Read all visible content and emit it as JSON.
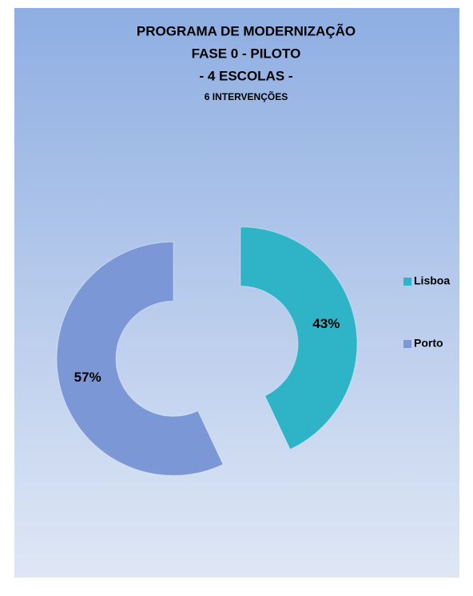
{
  "chart_data": {
    "type": "donut",
    "title": "PROGRAMA DE MODERNIZAÇÃO",
    "subtitle": [
      "FASE 0 - PILOTO",
      "- 4 ESCOLAS -",
      "6 INTERVENÇÕES"
    ],
    "categories": [
      "Lisboa",
      "Porto"
    ],
    "values": [
      43,
      57
    ],
    "value_labels": [
      "43%",
      "57%"
    ],
    "colors": [
      "#2fb3c6",
      "#7b97d6"
    ],
    "legend": "right"
  }
}
